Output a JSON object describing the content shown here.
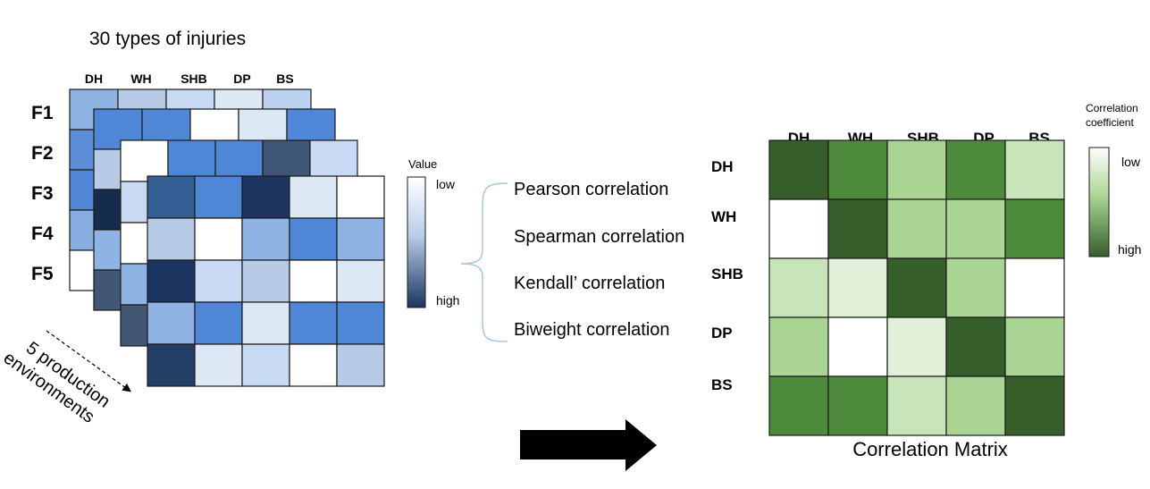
{
  "left_panel": {
    "title": "30 types of injuries",
    "column_labels": [
      "DH",
      "WH",
      "SHB",
      "DP",
      "BS"
    ],
    "row_labels": [
      "F1",
      "F2",
      "F3",
      "F4",
      "F5"
    ],
    "stack_label_line1": "5 production",
    "stack_label_line2": "environments",
    "layers": [
      {
        "visible_columns": 5,
        "cells": [
          [
            "#8fb3e3",
            "#b7cae6",
            "#c8daf3",
            "#dde8f5",
            "#bcd2ef"
          ],
          [
            "#5c8fd8",
            "#6f9ddf",
            "#7ea8e2",
            "#92b5e6",
            "#a7c4ec"
          ],
          [
            "#4f86d5",
            "#9bbbe8",
            "#b7cae6",
            "#d4e3f5",
            "#eef4fb"
          ],
          [
            "#86aee3",
            "#aac6ec",
            "#c8daf3",
            "#e1ebf7",
            "#ffffff"
          ],
          [
            "#ffffff",
            "#e6eef8",
            "#cfe0f4",
            "#b8d0ef",
            "#a1c0ea"
          ]
        ]
      },
      {
        "visible_columns": 5,
        "cells": [
          [
            "#4f86d5",
            "#4f86d5",
            "#ffffff",
            "#dde8f5",
            "#4f86d5"
          ],
          [
            "#b7cae6",
            "#8fb3e3",
            "#6f9ddf",
            "#5c8fd8",
            "#8fb3e3"
          ],
          [
            "#152c4e",
            "#c8daf3",
            "#dde8f5",
            "#aac6ec",
            "#ffffff"
          ],
          [
            "#8fb3e3",
            "#ffffff",
            "#c8daf3",
            "#5c8fd8",
            "#8fb3e3"
          ],
          [
            "#415773",
            "#8fb3e3",
            "#dde8f5",
            "#b7cae6",
            "#c8daf3"
          ]
        ]
      },
      {
        "visible_columns": 5,
        "cells": [
          [
            "#ffffff",
            "#4f86d5",
            "#4f86d5",
            "#3f5677",
            "#c8daf3"
          ],
          [
            "#c8daf3",
            "#8fb3e3",
            "#5c8fd8",
            "#b7cae6",
            "#dde8f5"
          ],
          [
            "#ffffff",
            "#b7cae6",
            "#8fb3e3",
            "#5c8fd8",
            "#aac6ec"
          ],
          [
            "#8fb3e3",
            "#dde8f5",
            "#ffffff",
            "#c8daf3",
            "#8fb3e3"
          ],
          [
            "#415773",
            "#b7cae6",
            "#8fb3e3",
            "#c8daf3",
            "#dde8f5"
          ]
        ]
      },
      {
        "visible_columns": 5,
        "cells": [
          [
            "#335f94",
            "#4f86d5",
            "#1b3560",
            "#dde8f5",
            "#ffffff"
          ],
          [
            "#b7cae6",
            "#ffffff",
            "#8fb3e3",
            "#4f86d5",
            "#8fb3e3"
          ],
          [
            "#1b3560",
            "#c8daf3",
            "#b7cae6",
            "#ffffff",
            "#dde8f5"
          ],
          [
            "#8fb3e3",
            "#4f86d5",
            "#dde8f5",
            "#4f86d5",
            "#4f86d5"
          ],
          [
            "#243f66",
            "#dde8f5",
            "#c8daf3",
            "#ffffff",
            "#b7cae6"
          ]
        ]
      }
    ],
    "value_legend": {
      "title": "Value",
      "low_label": "low",
      "high_label": "high",
      "low_color": "#ffffff",
      "high_color": "#1b3560"
    }
  },
  "methods": [
    "Pearson correlation",
    "Spearman correlation",
    "Kendall’ correlation",
    "Biweight correlation"
  ],
  "result": {
    "caption": "Correlation Matrix",
    "labels": [
      "DH",
      "WH",
      "SHB",
      "DP",
      "BS"
    ],
    "cells": [
      [
        "#365e2a",
        "#4e8a3c",
        "#a9d493",
        "#4e8a3c",
        "#c8e4b9"
      ],
      [
        "#ffffff",
        "#365e2a",
        "#a9d493",
        "#a9d493",
        "#4e8a3c"
      ],
      [
        "#c8e4b9",
        "#e2f0da",
        "#365e2a",
        "#a9d493",
        "#ffffff"
      ],
      [
        "#a9d493",
        "#ffffff",
        "#e2f0da",
        "#365e2a",
        "#a9d493"
      ],
      [
        "#4e8a3c",
        "#4e8a3c",
        "#c8e4b9",
        "#a9d493",
        "#365e2a"
      ]
    ],
    "legend": {
      "title_line1": "Correlation",
      "title_line2": "coefficient",
      "low_label": "low",
      "high_label": "high",
      "low_color": "#ffffff",
      "high_color": "#365e2a"
    }
  },
  "colors": {
    "border": "#1a1a1a",
    "brace": "#a7c4e0",
    "arrow": "#000000"
  }
}
